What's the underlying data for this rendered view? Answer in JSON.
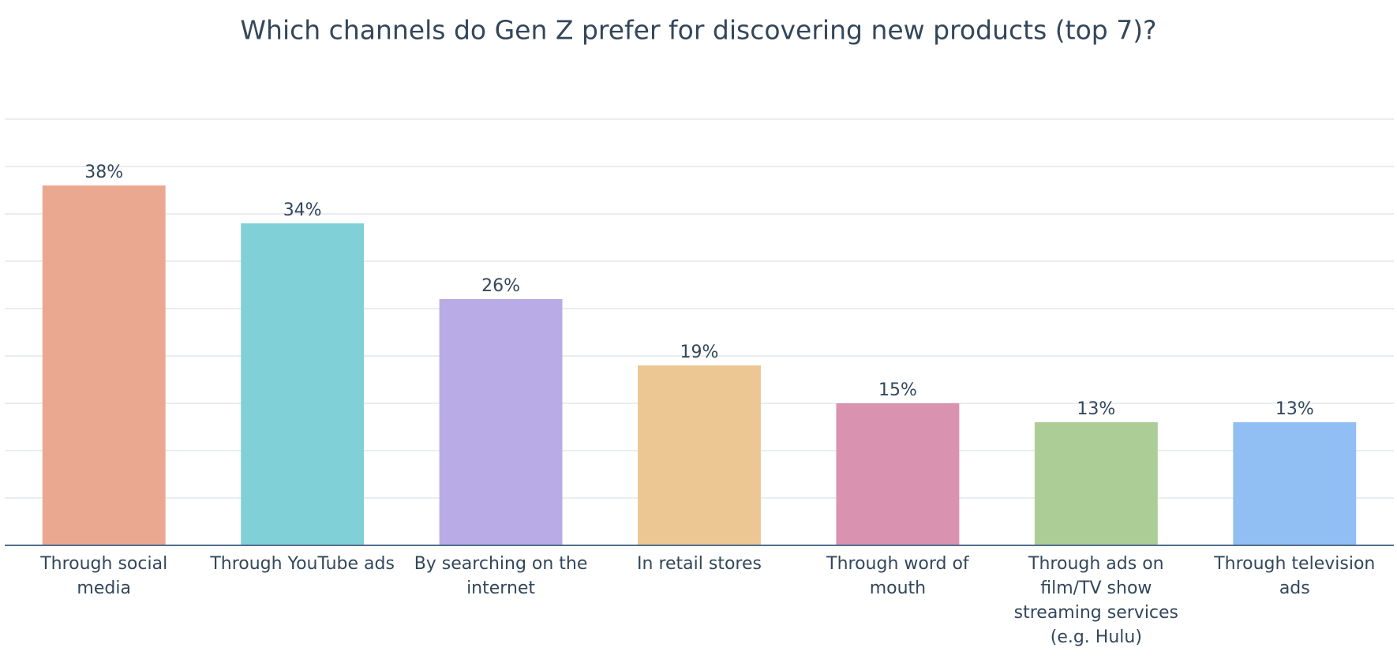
{
  "chart_data": {
    "type": "bar",
    "title": "Which channels do Gen Z prefer for discovering new products (top 7)?",
    "categories": [
      "Through social media",
      "Through YouTube ads",
      "By searching on the internet",
      "In retail stores",
      "Through word of mouth",
      "Through ads on film/TV show streaming services (e.g. Hulu)",
      "Through television ads"
    ],
    "values": [
      38,
      34,
      26,
      19,
      15,
      13,
      13
    ],
    "value_labels": [
      "38%",
      "34%",
      "26%",
      "19%",
      "15%",
      "13%",
      "13%"
    ],
    "colors": [
      "#eba891",
      "#80d1d7",
      "#b9abe5",
      "#ecc794",
      "#d992b0",
      "#acce96",
      "#91bff3"
    ],
    "ylim": [
      0,
      45
    ],
    "yticks": [
      0,
      5,
      10,
      15,
      20,
      25,
      30,
      35,
      40,
      45
    ],
    "grid": true
  }
}
